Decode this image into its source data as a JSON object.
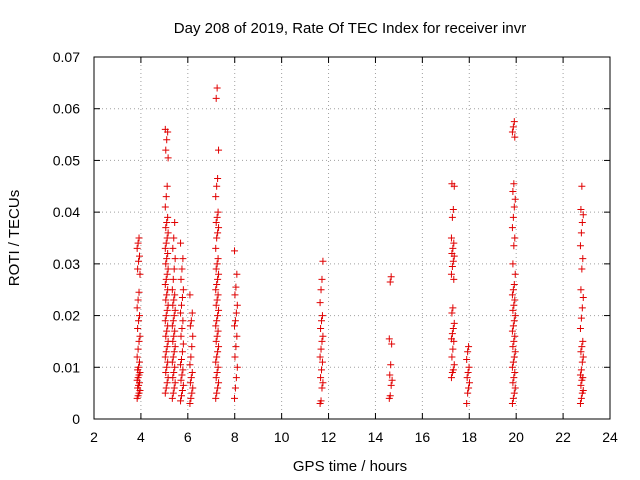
{
  "chart_data": {
    "type": "scatter",
    "title": "Day 208 of 2019, Rate Of TEC Index for receiver invr",
    "xlabel": "GPS time / hours",
    "ylabel": "ROTI / TECUs",
    "xlim": [
      2,
      24
    ],
    "ylim": [
      0,
      0.07
    ],
    "xticks": [
      "2",
      "4",
      "6",
      "8",
      "10",
      "12",
      "14",
      "16",
      "18",
      "20",
      "22",
      "24"
    ],
    "yticks": [
      "0",
      "0.01",
      "0.02",
      "0.03",
      "0.04",
      "0.05",
      "0.06",
      "0.07"
    ],
    "grid": true,
    "marker": "+",
    "color": "#e00000",
    "clusters": [
      {
        "x": 3.9,
        "y": [
          0.004,
          0.0045,
          0.005,
          0.0055,
          0.006,
          0.0065,
          0.007,
          0.0075,
          0.008,
          0.0085,
          0.009,
          0.0095,
          0.01,
          0.011,
          0.012,
          0.0135,
          0.015,
          0.016,
          0.0175,
          0.019,
          0.02,
          0.0215,
          0.023,
          0.0245,
          0.028,
          0.029,
          0.0305,
          0.0315,
          0.033,
          0.034,
          0.035
        ]
      },
      {
        "x": 5.1,
        "y": [
          0.005,
          0.006,
          0.007,
          0.008,
          0.009,
          0.01,
          0.011,
          0.012,
          0.013,
          0.014,
          0.015,
          0.016,
          0.017,
          0.018,
          0.019,
          0.02,
          0.021,
          0.022,
          0.023,
          0.024,
          0.025,
          0.026,
          0.027,
          0.028,
          0.029,
          0.03,
          0.031,
          0.032,
          0.033,
          0.034,
          0.035,
          0.036,
          0.037,
          0.038,
          0.039,
          0.041,
          0.043,
          0.045,
          0.0505,
          0.052,
          0.054,
          0.0555,
          0.056
        ]
      },
      {
        "x": 5.4,
        "y": [
          0.004,
          0.005,
          0.006,
          0.007,
          0.008,
          0.009,
          0.01,
          0.011,
          0.012,
          0.013,
          0.014,
          0.015,
          0.016,
          0.017,
          0.018,
          0.019,
          0.02,
          0.021,
          0.022,
          0.023,
          0.024,
          0.025,
          0.027,
          0.029,
          0.031,
          0.033,
          0.035,
          0.038
        ]
      },
      {
        "x": 5.75,
        "y": [
          0.0035,
          0.0045,
          0.0055,
          0.0065,
          0.0075,
          0.0085,
          0.0095,
          0.0105,
          0.0115,
          0.013,
          0.0145,
          0.016,
          0.0175,
          0.019,
          0.0205,
          0.022,
          0.0235,
          0.025,
          0.027,
          0.029,
          0.031,
          0.034
        ]
      },
      {
        "x": 6.15,
        "y": [
          0.003,
          0.004,
          0.005,
          0.006,
          0.007,
          0.008,
          0.009,
          0.0105,
          0.012,
          0.014,
          0.016,
          0.018,
          0.019,
          0.0205,
          0.024
        ]
      },
      {
        "x": 7.25,
        "y": [
          0.004,
          0.005,
          0.006,
          0.007,
          0.008,
          0.009,
          0.01,
          0.011,
          0.012,
          0.013,
          0.014,
          0.015,
          0.016,
          0.017,
          0.018,
          0.019,
          0.02,
          0.021,
          0.022,
          0.023,
          0.024,
          0.025,
          0.026,
          0.027,
          0.028,
          0.029,
          0.03,
          0.031,
          0.033,
          0.035,
          0.036,
          0.037,
          0.038,
          0.039,
          0.04,
          0.043,
          0.045,
          0.0465,
          0.052,
          0.062,
          0.064
        ]
      },
      {
        "x": 8.05,
        "y": [
          0.004,
          0.006,
          0.008,
          0.01,
          0.012,
          0.014,
          0.016,
          0.018,
          0.019,
          0.0205,
          0.022,
          0.024,
          0.0255,
          0.028,
          0.0325
        ]
      },
      {
        "x": 11.7,
        "y": [
          0.003,
          0.0035,
          0.006,
          0.007,
          0.008,
          0.0095,
          0.011,
          0.012,
          0.0135,
          0.015,
          0.016,
          0.0175,
          0.019,
          0.02,
          0.0225,
          0.025,
          0.027,
          0.0305
        ]
      },
      {
        "x": 14.65,
        "y": [
          0.004,
          0.0045,
          0.0065,
          0.0075,
          0.0085,
          0.0105,
          0.0145,
          0.0155,
          0.0265,
          0.0275
        ]
      },
      {
        "x": 17.3,
        "y": [
          0.008,
          0.009,
          0.0095,
          0.0105,
          0.012,
          0.0135,
          0.015,
          0.0155,
          0.0165,
          0.0175,
          0.0185,
          0.0205,
          0.0215,
          0.027,
          0.028,
          0.0295,
          0.0305,
          0.0315,
          0.032,
          0.033,
          0.034,
          0.035,
          0.039,
          0.0405,
          0.045,
          0.0455
        ]
      },
      {
        "x": 17.95,
        "y": [
          0.003,
          0.005,
          0.006,
          0.007,
          0.008,
          0.009,
          0.01,
          0.0115,
          0.013,
          0.014
        ]
      },
      {
        "x": 19.9,
        "y": [
          0.003,
          0.004,
          0.005,
          0.006,
          0.007,
          0.008,
          0.009,
          0.01,
          0.011,
          0.012,
          0.013,
          0.014,
          0.015,
          0.016,
          0.017,
          0.018,
          0.019,
          0.02,
          0.021,
          0.022,
          0.023,
          0.024,
          0.025,
          0.026,
          0.028,
          0.03,
          0.0335,
          0.035,
          0.037,
          0.039,
          0.041,
          0.0425,
          0.044,
          0.0455,
          0.0545,
          0.0555,
          0.0565,
          0.0575
        ]
      },
      {
        "x": 22.8,
        "y": [
          0.003,
          0.004,
          0.005,
          0.0055,
          0.0065,
          0.0075,
          0.008,
          0.0085,
          0.0095,
          0.011,
          0.012,
          0.013,
          0.014,
          0.015,
          0.0175,
          0.0195,
          0.0215,
          0.0235,
          0.025,
          0.029,
          0.031,
          0.0335,
          0.036,
          0.038,
          0.0395,
          0.0405,
          0.045
        ]
      }
    ]
  }
}
